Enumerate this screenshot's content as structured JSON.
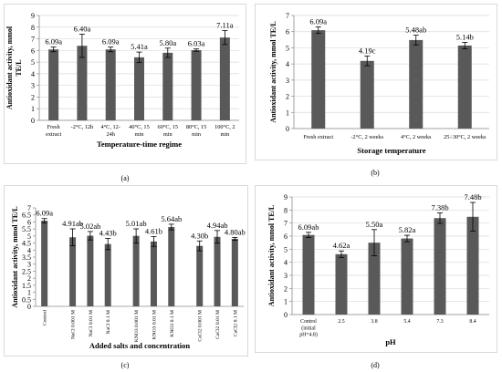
{
  "colors": {
    "bar": "#595959",
    "axis": "#8c8c8c",
    "grid": "#d9d9d9",
    "text": "#000000"
  },
  "chart_data": [
    {
      "panel": "(a)",
      "type": "bar",
      "categories": [
        [
          "Fresh",
          "extract"
        ],
        [
          "-2°C, 12h"
        ],
        [
          "4°C, 12-",
          "24h"
        ],
        [
          "40°C, 15",
          "min"
        ],
        [
          "60°C, 15",
          "min"
        ],
        [
          "80°C, 15",
          "min"
        ],
        [
          "100°C, 2",
          "min"
        ]
      ],
      "values": [
        6.09,
        6.4,
        6.09,
        5.41,
        5.8,
        6.03,
        7.11
      ],
      "errors": [
        0.2,
        1.0,
        0.2,
        0.45,
        0.4,
        0.1,
        0.6
      ],
      "labels": [
        "6.09a",
        "6.40a",
        "6.09a",
        "5.41a",
        "5.80a",
        "6.03a",
        "7.11a"
      ],
      "xlabel": "Temperature-time regime",
      "ylabel": [
        "Antioxidant activity, mmol",
        "TE/L"
      ],
      "ylim": [
        0,
        9
      ],
      "ticks": [
        0,
        1,
        2,
        3,
        4,
        5,
        6,
        7,
        8,
        9
      ],
      "grid": true
    },
    {
      "panel": "(b)",
      "type": "bar",
      "categories": [
        [
          "Fresh extract"
        ],
        [
          "-2°C, 2 weeks"
        ],
        [
          "4°C, 2 weeks"
        ],
        [
          "25÷30°C, 2 weeks"
        ]
      ],
      "values": [
        6.09,
        4.19,
        5.48,
        5.14
      ],
      "errors": [
        0.2,
        0.3,
        0.3,
        0.2
      ],
      "labels": [
        "6.09a",
        "4.19c",
        "5.48ab",
        "5.14b"
      ],
      "xlabel": "Storage temperature",
      "ylabel": [
        "Antioxidant activity, mmol TE/L"
      ],
      "ylim": [
        0,
        7
      ],
      "ticks": [
        0,
        1,
        2,
        3,
        4,
        5,
        6,
        7
      ],
      "grid": true
    },
    {
      "panel": "(c)",
      "type": "bar",
      "categories": [
        [
          "Control"
        ],
        [
          "NaCl 0.001 M"
        ],
        [
          "NaCl 0.01 M"
        ],
        [
          "NaCl 0.1 M"
        ],
        [
          "KNO3 0.001 M"
        ],
        [
          "KNO3 0.01 M"
        ],
        [
          "KNO3 0.1 M"
        ],
        [
          "CaCl2 0.001 M"
        ],
        [
          "CaCl2 0.01 M"
        ],
        [
          "CaCl2 0.1 M"
        ]
      ],
      "values": [
        6.09,
        4.91,
        5.02,
        4.43,
        5.01,
        4.61,
        5.64,
        4.3,
        4.94,
        4.8
      ],
      "errors": [
        0.15,
        0.6,
        0.3,
        0.4,
        0.5,
        0.35,
        0.2,
        0.35,
        0.45,
        0.1
      ],
      "labels": [
        "6.09a",
        "4.91ab",
        "5.02ab",
        "4.43b",
        "5.01ab",
        "4.61b",
        "5.64ab",
        "4.30b",
        "4.94ab",
        "4.80ab"
      ],
      "xlabel": "Added salts and concentration",
      "ylabel": [
        "Antioxidant activity, mmol TE/L"
      ],
      "ylim": [
        0,
        7
      ],
      "ticks": [
        0,
        0.5,
        1,
        1.5,
        2,
        2.5,
        3,
        3.5,
        4,
        4.5,
        5,
        5.5,
        6,
        6.5,
        7
      ],
      "grid": false
    },
    {
      "panel": "(d)",
      "type": "bar",
      "categories": [
        [
          "Control",
          "(initial",
          "pH=4.8)"
        ],
        [
          "2.5"
        ],
        [
          "3.8"
        ],
        [
          "5.4"
        ],
        [
          "7.3"
        ],
        [
          "8.4"
        ]
      ],
      "values": [
        6.09,
        4.62,
        5.5,
        5.82,
        7.38,
        7.48
      ],
      "errors": [
        0.2,
        0.25,
        1.0,
        0.25,
        0.4,
        1.1
      ],
      "labels": [
        "6.09ab",
        "4.62a",
        "5.50a",
        "5.82a",
        "7.38b",
        "7.48b"
      ],
      "xlabel": "pH",
      "ylabel": [
        "Antioxidant activity, mmol TE/L"
      ],
      "ylim": [
        0,
        9
      ],
      "ticks": [
        0,
        1,
        2,
        3,
        4,
        5,
        6,
        7,
        8,
        9
      ],
      "grid": true
    }
  ]
}
